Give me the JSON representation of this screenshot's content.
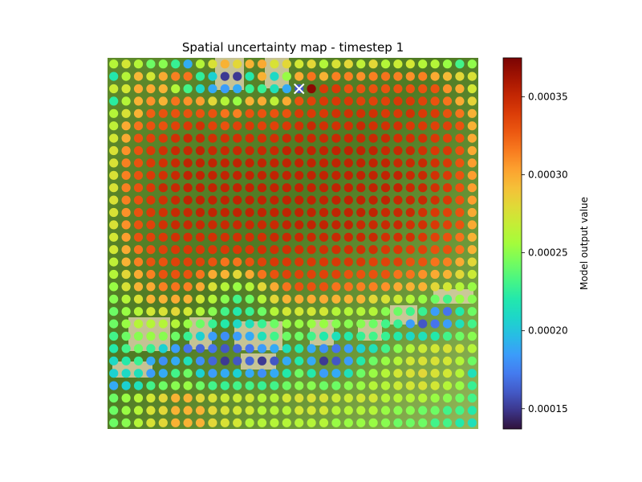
{
  "chart_data": {
    "type": "heatmap",
    "subtype": "scatter-over-image",
    "title": "Spatial uncertainty map - timestep 1",
    "xlabel": "",
    "ylabel": "",
    "axes_visible": false,
    "background": "aerial imagery",
    "colormap": "turbo",
    "grid_rows": 30,
    "grid_cols": 30,
    "colorbar": {
      "label": "Model output value",
      "vmin": 0.000137,
      "vmax": 0.000375,
      "ticks": [
        0.00015,
        0.0002,
        0.00025,
        0.0003,
        0.00035
      ],
      "tick_labels": [
        "0.00015",
        "0.00020",
        "0.00025",
        "0.00030",
        "0.00035"
      ]
    },
    "marker": {
      "symbol": "x",
      "color": "#ffffff",
      "row": 2,
      "col": 15
    },
    "values": [
      [
        0.000262,
        0.000273,
        0.000262,
        0.000242,
        0.000249,
        0.000228,
        0.000191,
        0.000262,
        0.000276,
        0.000297,
        0.000281,
        0.000297,
        0.0003,
        0.000276,
        0.000281,
        0.000273,
        0.000281,
        0.000261,
        0.000276,
        0.000281,
        0.000266,
        0.000281,
        0.000262,
        0.00027,
        0.000273,
        0.000262,
        0.000262,
        0.000253,
        0.000231,
        0.000251
      ],
      [
        0.00022,
        0.000262,
        0.000295,
        0.000273,
        0.0003,
        0.000314,
        0.000318,
        0.000226,
        0.000205,
        0.00015,
        0.00015,
        0.000221,
        0.000297,
        0.00021,
        0.000253,
        0.0003,
        0.000318,
        0.000297,
        0.000314,
        0.000314,
        0.000309,
        0.000314,
        0.000318,
        0.000314,
        0.000309,
        0.000314,
        0.0003,
        0.000294,
        0.000281,
        0.000276
      ],
      [
        0.00027,
        0.000273,
        0.0003,
        0.0003,
        0.000297,
        0.000261,
        0.000231,
        0.00021,
        0.00019,
        0.000185,
        0.00019,
        0.000228,
        0.000228,
        0.000215,
        0.00019,
        0.00016,
        0.00037,
        0.000341,
        0.000341,
        0.00033,
        0.00033,
        0.00033,
        0.00033,
        0.00033,
        0.00033,
        0.00033,
        0.00033,
        0.000309,
        0.0003,
        0.000273
      ],
      [
        0.000224,
        0.000262,
        0.000297,
        0.000309,
        0.000297,
        0.000318,
        0.000309,
        0.000305,
        0.000281,
        0.000262,
        0.000253,
        0.000297,
        0.0003,
        0.000266,
        0.0003,
        0.00033,
        0.000337,
        0.000341,
        0.000341,
        0.000341,
        0.000337,
        0.000337,
        0.000337,
        0.000341,
        0.000341,
        0.000337,
        0.00033,
        0.000318,
        0.0003,
        0.000283
      ],
      [
        0.000262,
        0.000276,
        0.000297,
        0.000325,
        0.00033,
        0.00033,
        0.00033,
        0.00033,
        0.00033,
        0.000318,
        0.000314,
        0.00033,
        0.00033,
        0.00033,
        0.00033,
        0.000341,
        0.000341,
        0.000341,
        0.000345,
        0.000345,
        0.000345,
        0.000345,
        0.000341,
        0.000341,
        0.000345,
        0.000341,
        0.000341,
        0.00033,
        0.000318,
        0.000297
      ],
      [
        0.000266,
        0.0003,
        0.000318,
        0.00033,
        0.00033,
        0.000337,
        0.000341,
        0.000345,
        0.000337,
        0.00033,
        0.000337,
        0.000341,
        0.000337,
        0.000337,
        0.000341,
        0.000345,
        0.000349,
        0.000345,
        0.000345,
        0.000345,
        0.000349,
        0.000345,
        0.000345,
        0.000345,
        0.000341,
        0.000341,
        0.000337,
        0.000337,
        0.00033,
        0.000297
      ],
      [
        0.000273,
        0.0003,
        0.00033,
        0.000337,
        0.000341,
        0.000345,
        0.000349,
        0.000349,
        0.000345,
        0.000345,
        0.000345,
        0.000345,
        0.000345,
        0.000345,
        0.000349,
        0.000349,
        0.000349,
        0.000349,
        0.000349,
        0.000349,
        0.000349,
        0.000349,
        0.000349,
        0.000345,
        0.000345,
        0.000345,
        0.000341,
        0.000337,
        0.00033,
        0.0003
      ],
      [
        0.000276,
        0.000309,
        0.00033,
        0.000341,
        0.000345,
        0.000349,
        0.000349,
        0.000352,
        0.000349,
        0.000349,
        0.000349,
        0.000349,
        0.000349,
        0.000349,
        0.000352,
        0.000352,
        0.000352,
        0.000352,
        0.000352,
        0.000352,
        0.000352,
        0.000352,
        0.000349,
        0.000349,
        0.000349,
        0.000345,
        0.000341,
        0.000341,
        0.00033,
        0.0003
      ],
      [
        0.000276,
        0.000314,
        0.00033,
        0.000341,
        0.000345,
        0.000349,
        0.000352,
        0.000352,
        0.000352,
        0.000352,
        0.000352,
        0.000352,
        0.000352,
        0.000352,
        0.000352,
        0.000352,
        0.000352,
        0.000352,
        0.000352,
        0.000352,
        0.000352,
        0.000352,
        0.000352,
        0.000349,
        0.000349,
        0.000349,
        0.000345,
        0.000341,
        0.00033,
        0.000305
      ],
      [
        0.000276,
        0.000314,
        0.00033,
        0.000341,
        0.000345,
        0.000349,
        0.000352,
        0.000352,
        0.000352,
        0.000352,
        0.000352,
        0.000352,
        0.000352,
        0.000352,
        0.000352,
        0.000352,
        0.000352,
        0.000352,
        0.000352,
        0.000352,
        0.000352,
        0.000352,
        0.000352,
        0.000352,
        0.000349,
        0.000349,
        0.000345,
        0.000341,
        0.00033,
        0.000305
      ],
      [
        0.000276,
        0.000314,
        0.00033,
        0.000341,
        0.000349,
        0.000349,
        0.000352,
        0.000352,
        0.000352,
        0.000352,
        0.000352,
        0.000352,
        0.000352,
        0.000352,
        0.000352,
        0.000352,
        0.000352,
        0.000352,
        0.000352,
        0.000352,
        0.000352,
        0.000352,
        0.000352,
        0.000352,
        0.000349,
        0.000349,
        0.000345,
        0.000341,
        0.00033,
        0.000305
      ],
      [
        0.000276,
        0.000314,
        0.00033,
        0.000341,
        0.000345,
        0.000349,
        0.000352,
        0.000352,
        0.000352,
        0.000352,
        0.000352,
        0.000352,
        0.000352,
        0.000352,
        0.000352,
        0.000352,
        0.000352,
        0.000352,
        0.000352,
        0.000352,
        0.000352,
        0.000352,
        0.000352,
        0.000349,
        0.000349,
        0.000349,
        0.000345,
        0.000341,
        0.00033,
        0.000305
      ],
      [
        0.000276,
        0.000309,
        0.00033,
        0.000341,
        0.000345,
        0.000349,
        0.000349,
        0.000352,
        0.000352,
        0.000352,
        0.000352,
        0.000352,
        0.000352,
        0.000352,
        0.000352,
        0.000352,
        0.000352,
        0.000352,
        0.000352,
        0.000352,
        0.000352,
        0.000352,
        0.000349,
        0.000349,
        0.000349,
        0.000345,
        0.000341,
        0.000337,
        0.00033,
        0.0003
      ],
      [
        0.000276,
        0.000309,
        0.00033,
        0.000337,
        0.000345,
        0.000349,
        0.000349,
        0.000349,
        0.000349,
        0.000349,
        0.000349,
        0.000349,
        0.000349,
        0.000349,
        0.000352,
        0.000352,
        0.000352,
        0.000352,
        0.000352,
        0.000352,
        0.000349,
        0.000349,
        0.000349,
        0.000349,
        0.000345,
        0.000345,
        0.000341,
        0.000337,
        0.00033,
        0.0003
      ],
      [
        0.000273,
        0.000305,
        0.00033,
        0.000337,
        0.000341,
        0.000345,
        0.000345,
        0.000345,
        0.000345,
        0.000345,
        0.000345,
        0.000345,
        0.000345,
        0.000349,
        0.000349,
        0.000349,
        0.000349,
        0.000349,
        0.000349,
        0.000349,
        0.000349,
        0.000349,
        0.000345,
        0.000345,
        0.000345,
        0.000341,
        0.000337,
        0.00033,
        0.000318,
        0.000297
      ],
      [
        0.000273,
        0.0003,
        0.000318,
        0.00033,
        0.000337,
        0.000341,
        0.000341,
        0.000341,
        0.000341,
        0.000341,
        0.000341,
        0.000341,
        0.000345,
        0.000345,
        0.000345,
        0.000345,
        0.000345,
        0.000345,
        0.000345,
        0.000345,
        0.000345,
        0.000345,
        0.000341,
        0.000341,
        0.000337,
        0.000337,
        0.00033,
        0.00033,
        0.000318,
        0.000297
      ],
      [
        0.000266,
        0.000297,
        0.000314,
        0.00033,
        0.00033,
        0.000337,
        0.000337,
        0.000337,
        0.00033,
        0.000318,
        0.000318,
        0.00033,
        0.000337,
        0.000341,
        0.000341,
        0.000341,
        0.000341,
        0.000341,
        0.000341,
        0.000341,
        0.000341,
        0.000337,
        0.000337,
        0.000337,
        0.00033,
        0.00033,
        0.000318,
        0.000314,
        0.0003,
        0.000281
      ],
      [
        0.000262,
        0.000281,
        0.0003,
        0.000314,
        0.00033,
        0.00033,
        0.00033,
        0.000318,
        0.0003,
        0.000297,
        0.000281,
        0.0003,
        0.000318,
        0.00033,
        0.000337,
        0.000337,
        0.000337,
        0.000337,
        0.000337,
        0.00033,
        0.00033,
        0.00033,
        0.00033,
        0.000318,
        0.000318,
        0.000309,
        0.0003,
        0.000297,
        0.000281,
        0.00027
      ],
      [
        0.000253,
        0.000276,
        0.000297,
        0.0003,
        0.000314,
        0.000318,
        0.000314,
        0.0003,
        0.000276,
        0.000262,
        0.000253,
        0.000262,
        0.000281,
        0.0003,
        0.000318,
        0.00033,
        0.00033,
        0.00033,
        0.000318,
        0.000318,
        0.000314,
        0.000314,
        0.000309,
        0.0003,
        0.000297,
        0.000297,
        0.000281,
        0.000273,
        0.000262,
        0.000253
      ],
      [
        0.000249,
        0.000262,
        0.000276,
        0.000297,
        0.000297,
        0.0003,
        0.000297,
        0.000273,
        0.000262,
        0.000249,
        0.000231,
        0.000242,
        0.000262,
        0.000281,
        0.000297,
        0.0003,
        0.0003,
        0.0003,
        0.000297,
        0.000297,
        0.000297,
        0.000281,
        0.000276,
        0.00027,
        0.000262,
        0.000253,
        0.000242,
        0.000231,
        0.000253,
        0.000249
      ],
      [
        0.000242,
        0.000253,
        0.000262,
        0.000273,
        0.000276,
        0.000281,
        0.000273,
        0.000262,
        0.000249,
        0.000231,
        0.000221,
        0.000228,
        0.000242,
        0.000262,
        0.000273,
        0.000273,
        0.000273,
        0.000273,
        0.000262,
        0.000262,
        0.000262,
        0.000262,
        0.000249,
        0.000242,
        0.000231,
        0.000228,
        0.000185,
        0.00017,
        0.000221,
        0.000242
      ],
      [
        0.000242,
        0.000253,
        0.000262,
        0.000262,
        0.000262,
        0.000262,
        0.000253,
        0.000242,
        0.000228,
        0.000221,
        0.00021,
        0.000215,
        0.000228,
        0.000242,
        0.000253,
        0.000253,
        0.000253,
        0.000253,
        0.000249,
        0.000249,
        0.000249,
        0.000242,
        0.000231,
        0.000228,
        0.000185,
        0.00016,
        0.00017,
        0.000185,
        0.000215,
        0.000231
      ],
      [
        0.000231,
        0.000242,
        0.000249,
        0.000253,
        0.000249,
        0.000242,
        0.000228,
        0.000205,
        0.000185,
        0.00018,
        0.000185,
        0.00019,
        0.000215,
        0.000231,
        0.000242,
        0.000242,
        0.000231,
        0.000221,
        0.000215,
        0.000221,
        0.000228,
        0.000231,
        0.000228,
        0.000221,
        0.00021,
        0.000215,
        0.000221,
        0.000231,
        0.000242,
        0.000249
      ],
      [
        0.000221,
        0.000231,
        0.000242,
        0.000228,
        0.000205,
        0.000185,
        0.00017,
        0.000165,
        0.00017,
        0.00016,
        0.000165,
        0.00017,
        0.000185,
        0.00019,
        0.000215,
        0.000221,
        0.00019,
        0.00018,
        0.00017,
        0.000185,
        0.000205,
        0.000215,
        0.000231,
        0.000249,
        0.000262,
        0.00027,
        0.000273,
        0.000276,
        0.000273,
        0.000262
      ],
      [
        0.00021,
        0.000221,
        0.000228,
        0.00019,
        0.00018,
        0.00019,
        0.000215,
        0.00018,
        0.000165,
        0.00015,
        0.00016,
        0.000165,
        0.00015,
        0.00016,
        0.00019,
        0.000221,
        0.00019,
        0.00015,
        0.00016,
        0.000185,
        0.000221,
        0.000242,
        0.000253,
        0.000262,
        0.000273,
        0.000276,
        0.000276,
        0.000273,
        0.000262,
        0.000242
      ],
      [
        0.000205,
        0.00021,
        0.000215,
        0.000185,
        0.00019,
        0.000231,
        0.000242,
        0.000205,
        0.000185,
        0.00019,
        0.000205,
        0.00019,
        0.00018,
        0.00019,
        0.000221,
        0.000242,
        0.000221,
        0.000185,
        0.00019,
        0.000215,
        0.000242,
        0.000253,
        0.000262,
        0.000273,
        0.000276,
        0.000281,
        0.000276,
        0.000273,
        0.000262,
        0.000215
      ],
      [
        0.00019,
        0.000205,
        0.000215,
        0.000231,
        0.000242,
        0.000249,
        0.000253,
        0.000242,
        0.000231,
        0.000228,
        0.000231,
        0.000231,
        0.000228,
        0.000231,
        0.000242,
        0.000249,
        0.000249,
        0.000242,
        0.000242,
        0.000249,
        0.000253,
        0.000262,
        0.000262,
        0.00027,
        0.000273,
        0.000276,
        0.000273,
        0.000262,
        0.000253,
        0.000228
      ],
      [
        0.000242,
        0.000253,
        0.000262,
        0.000273,
        0.000281,
        0.000297,
        0.000297,
        0.000281,
        0.000276,
        0.00027,
        0.00027,
        0.000273,
        0.000262,
        0.000262,
        0.000273,
        0.000276,
        0.000276,
        0.000276,
        0.00027,
        0.00027,
        0.000273,
        0.000273,
        0.000262,
        0.000262,
        0.000262,
        0.000262,
        0.000253,
        0.000249,
        0.000242,
        0.000231
      ],
      [
        0.000242,
        0.000253,
        0.000262,
        0.000276,
        0.000281,
        0.000297,
        0.000297,
        0.000297,
        0.000281,
        0.000276,
        0.000273,
        0.000273,
        0.000262,
        0.000262,
        0.000262,
        0.000273,
        0.000273,
        0.000273,
        0.000262,
        0.000262,
        0.000262,
        0.000262,
        0.000253,
        0.000249,
        0.000249,
        0.000242,
        0.000242,
        0.000231,
        0.000231,
        0.000221
      ],
      [
        0.000242,
        0.000249,
        0.000262,
        0.000276,
        0.000281,
        0.000297,
        0.000297,
        0.000297,
        0.000281,
        0.000276,
        0.000273,
        0.000262,
        0.000262,
        0.000262,
        0.000262,
        0.000262,
        0.000262,
        0.000262,
        0.000253,
        0.000253,
        0.000253,
        0.000253,
        0.000249,
        0.000242,
        0.000242,
        0.000242,
        0.000231,
        0.000231,
        0.000221,
        0.000215
      ]
    ]
  }
}
